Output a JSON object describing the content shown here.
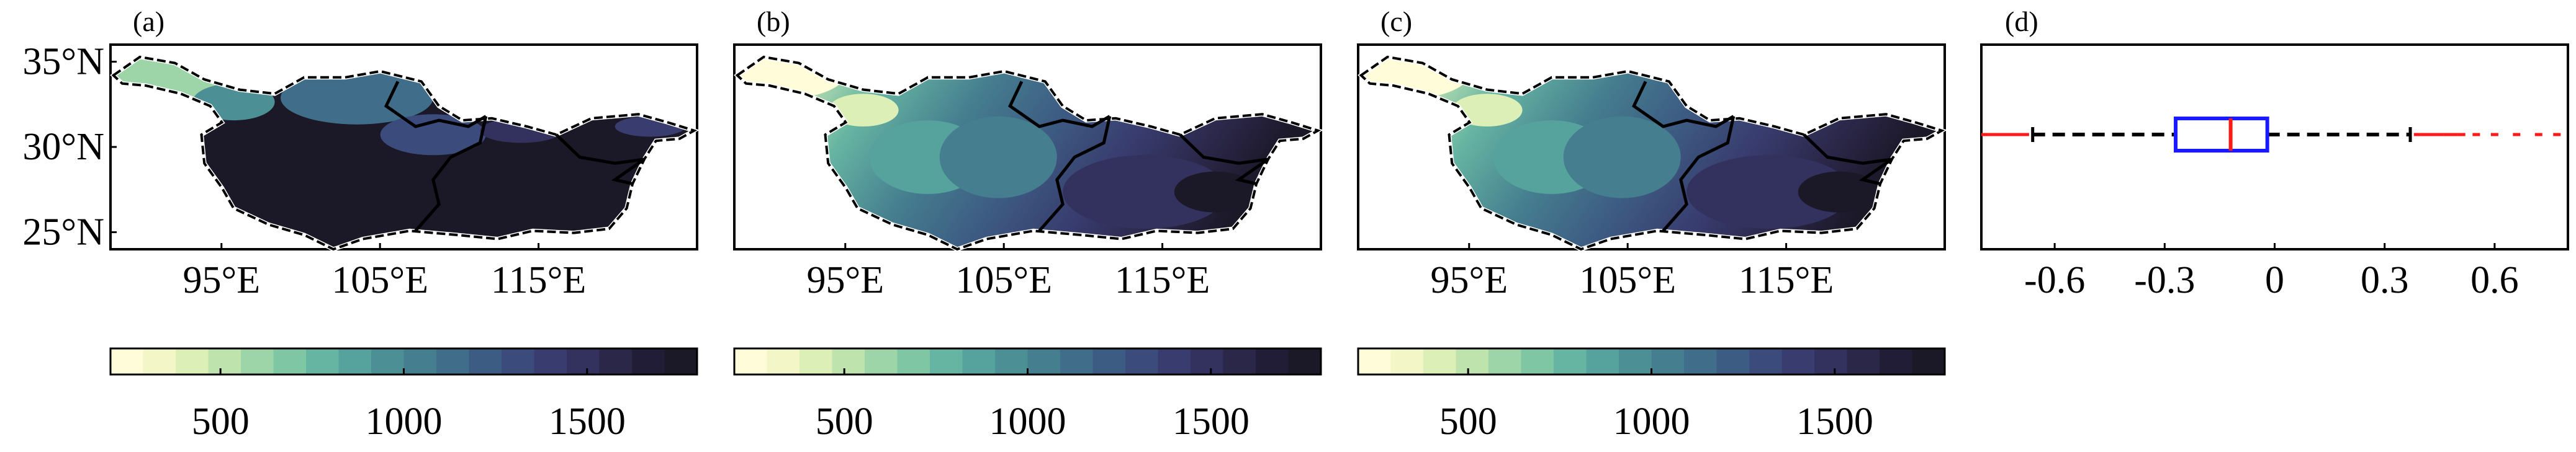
{
  "colors": {
    "map_background": "#ffffff",
    "border": "#000000",
    "colormap": [
      "#fffcd9",
      "#f3f6c7",
      "#dcefb6",
      "#bfe3ad",
      "#9dd5a8",
      "#7fc6a5",
      "#66b5a2",
      "#56a39d",
      "#4c9096",
      "#457e8f",
      "#406d89",
      "#3d5c83",
      "#3b4b7c",
      "#383c6e",
      "#33315d",
      "#2b2749",
      "#221d36",
      "#1b1828"
    ],
    "boxplot_box": "#1a1aff",
    "boxplot_median": "#ff1a1a",
    "boxplot_whisker": "#000000",
    "boxplot_outlier": "#ff1a1a"
  },
  "panels": [
    {
      "tag": "(a)",
      "lat_ticks": [
        "35°N",
        "30°N",
        "25°N"
      ],
      "lon_ticks": [
        "95°E",
        "105°E",
        "115°E"
      ],
      "colorbar_ticks": [
        "500",
        "1000",
        "1500"
      ],
      "style": "high"
    },
    {
      "tag": "(b)",
      "lat_ticks": [],
      "lon_ticks": [
        "95°E",
        "105°E",
        "115°E"
      ],
      "colorbar_ticks": [
        "500",
        "1000",
        "1500"
      ],
      "style": "grad"
    },
    {
      "tag": "(c)",
      "lat_ticks": [],
      "lon_ticks": [
        "95°E",
        "105°E",
        "115°E"
      ],
      "colorbar_ticks": [
        "500",
        "1000",
        "1500"
      ],
      "style": "grad"
    }
  ],
  "chart_data": [
    {
      "type": "heatmap",
      "panel": "(a)",
      "lon_range": [
        88,
        125
      ],
      "lat_range": [
        24,
        36
      ],
      "lon_ticks": [
        95,
        105,
        115
      ],
      "lat_ticks": [
        35,
        30,
        25
      ],
      "colorbar": {
        "range": [
          200,
          1800
        ],
        "ticks": [
          500,
          1000,
          1500
        ]
      }
    },
    {
      "type": "heatmap",
      "panel": "(b)",
      "lon_range": [
        88,
        125
      ],
      "lat_range": [
        24,
        36
      ],
      "lon_ticks": [
        95,
        105,
        115
      ],
      "colorbar": {
        "range": [
          200,
          1800
        ],
        "ticks": [
          500,
          1000,
          1500
        ]
      }
    },
    {
      "type": "heatmap",
      "panel": "(c)",
      "lon_range": [
        88,
        125
      ],
      "lat_range": [
        24,
        36
      ],
      "lon_ticks": [
        95,
        105,
        115
      ],
      "colorbar": {
        "range": [
          200,
          1800
        ],
        "ticks": [
          500,
          1000,
          1500
        ]
      }
    },
    {
      "type": "boxplot",
      "panel": "(d)",
      "orientation": "horizontal",
      "xlim": [
        -0.8,
        0.8
      ],
      "x_ticks": [
        "-0.6",
        "-0.3",
        "0",
        "0.3",
        "0.6"
      ],
      "x_tick_values": [
        -0.6,
        -0.3,
        0,
        0.3,
        0.6
      ],
      "whisker_low": -0.66,
      "q1": -0.27,
      "median": -0.12,
      "q3": -0.02,
      "whisker_high": 0.37,
      "outliers": [
        -0.79,
        -0.77,
        -0.75,
        -0.74,
        -0.73,
        -0.72,
        -0.71,
        -0.7,
        -0.69,
        -0.68,
        0.39,
        0.41,
        0.43,
        0.45,
        0.47,
        0.49,
        0.51,
        0.55,
        0.6,
        0.66,
        0.72,
        0.77
      ]
    }
  ]
}
